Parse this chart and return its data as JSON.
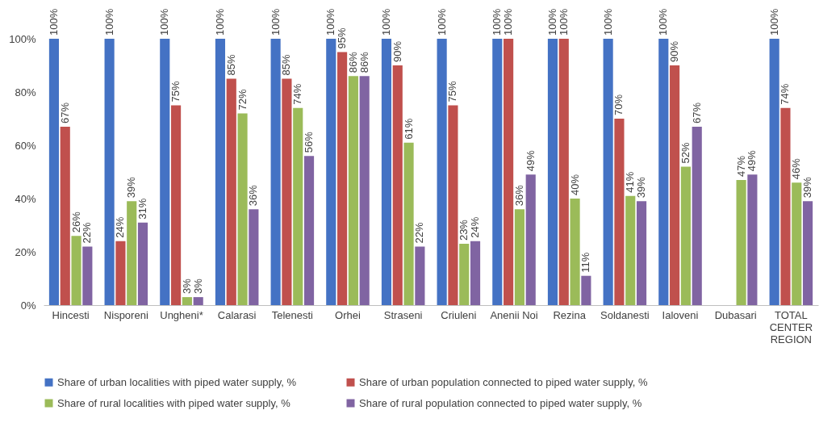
{
  "chart_data": {
    "type": "bar",
    "categories": [
      "Hincesti",
      "Nisporeni",
      "Ungheni*",
      "Calarasi",
      "Telenesti",
      "Orhei",
      "Straseni",
      "Criuleni",
      "Anenii Noi",
      "Rezina",
      "Soldanesti",
      "Ialoveni",
      "Dubasari",
      "TOTAL CENTER REGION"
    ],
    "series": [
      {
        "name": "Share of urban localities with piped water supply, %",
        "color": "#4472c4",
        "values": [
          100,
          100,
          100,
          100,
          100,
          100,
          100,
          100,
          100,
          100,
          100,
          100,
          null,
          100
        ],
        "value_labels": [
          "100%",
          "100%",
          "100%",
          "100%",
          "100%",
          "100%",
          "100%",
          "100%",
          "100%",
          "100%",
          "100%",
          "100%",
          null,
          "100%"
        ]
      },
      {
        "name": "Share of urban population connected to piped water supply, %",
        "color": "#c0504d",
        "values": [
          67,
          24,
          75,
          85,
          85,
          95,
          90,
          75,
          100,
          100,
          70,
          90,
          null,
          74
        ],
        "value_labels": [
          "67%",
          "24%",
          "75%",
          "85%",
          "85%",
          "95%",
          "90%",
          "75%",
          "100%",
          "100%",
          "70%",
          "90%",
          null,
          "74%"
        ]
      },
      {
        "name": "Share of rural localities with piped water supply, %",
        "color": "#9bbb59",
        "values": [
          26,
          39,
          3,
          72,
          74,
          86,
          61,
          23,
          36,
          40,
          41,
          52,
          47,
          46
        ],
        "value_labels": [
          "26%",
          "39%",
          "3%",
          "72%",
          "74%",
          "86%",
          "61%",
          "23%",
          "36%",
          "40%",
          "41%",
          "52%",
          "47%",
          "46%"
        ]
      },
      {
        "name": "Share of rural population connected to piped water supply, %",
        "color": "#8064a2",
        "values": [
          22,
          31,
          3,
          36,
          56,
          86,
          22,
          24,
          49,
          11,
          39,
          67,
          49,
          39
        ],
        "value_labels": [
          "22%",
          "31%",
          "3%",
          "36%",
          "56%",
          "86%",
          "22%",
          "24%",
          "49%",
          "11%",
          "39%",
          "67%",
          "49%",
          "39%"
        ]
      }
    ],
    "ylim": [
      0,
      100
    ],
    "yticks": [
      {
        "value": 0,
        "label": "0%"
      },
      {
        "value": 20,
        "label": "20%"
      },
      {
        "value": 40,
        "label": "40%"
      },
      {
        "value": 60,
        "label": "60%"
      },
      {
        "value": 80,
        "label": "80%"
      },
      {
        "value": 100,
        "label": "100%"
      }
    ],
    "grid": false,
    "legend": "bottom"
  }
}
